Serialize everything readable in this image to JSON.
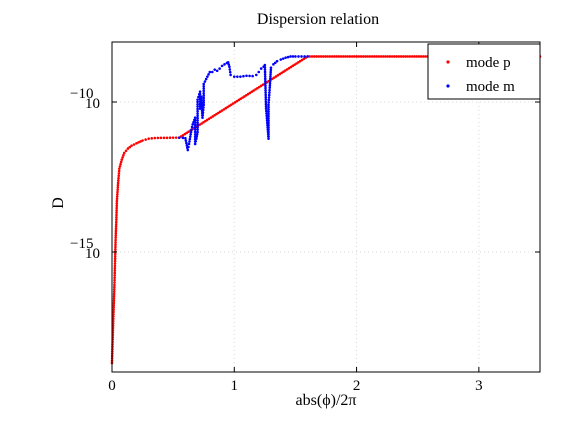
{
  "chart_data": {
    "type": "scatter",
    "title": "Dispersion relation",
    "xlabel": "abs(ϕ)/2π",
    "ylabel": "D",
    "xlim": [
      0,
      3.5
    ],
    "ylim": [
      1e-19,
      1e-08
    ],
    "yscale": "log",
    "grid": true,
    "legend_position": "top-right",
    "x_ticks": [
      0,
      1,
      2,
      3
    ],
    "x_tick_labels": [
      "0",
      "1",
      "2",
      "3"
    ],
    "y_ticks": [
      1e-15,
      1e-10
    ],
    "y_tick_labels": [
      {
        "base": "10",
        "exp": "−15"
      },
      {
        "base": "10",
        "exp": "−10"
      }
    ],
    "series": [
      {
        "name": "mode p",
        "color": "#ff0000",
        "marker": "dot",
        "points": [
          [
            0.0,
            2e-19
          ],
          [
            0.005,
            1e-18
          ],
          [
            0.01,
            5e-18
          ],
          [
            0.015,
            2e-17
          ],
          [
            0.02,
            8e-17
          ],
          [
            0.025,
            5e-16
          ],
          [
            0.03,
            3e-15
          ],
          [
            0.035,
            1e-14
          ],
          [
            0.04,
            5e-14
          ],
          [
            0.05,
            2e-13
          ],
          [
            0.06,
            6e-13
          ],
          [
            0.08,
            1.2e-12
          ],
          [
            0.1,
            2e-12
          ],
          [
            0.13,
            2.8e-12
          ],
          [
            0.16,
            3.5e-12
          ],
          [
            0.2,
            4.2e-12
          ],
          [
            0.25,
            5.2e-12
          ],
          [
            0.3,
            6e-12
          ],
          [
            0.35,
            6.3e-12
          ],
          [
            0.4,
            6.4e-12
          ],
          [
            0.45,
            6.4e-12
          ],
          [
            0.5,
            6.5e-12
          ],
          [
            0.55,
            6.5e-12
          ],
          [
            1.6,
            3.3e-09
          ],
          [
            1.8,
            3.3e-09
          ],
          [
            2.0,
            3.3e-09
          ],
          [
            2.2,
            3.3e-09
          ],
          [
            2.4,
            3.3e-09
          ],
          [
            2.6,
            3.3e-09
          ],
          [
            2.8,
            3.3e-09
          ],
          [
            3.0,
            3.3e-09
          ],
          [
            3.2,
            3.3e-09
          ],
          [
            3.4,
            3.3e-09
          ],
          [
            3.5,
            3.3e-09
          ]
        ]
      },
      {
        "name": "mode m",
        "color": "#0000ff",
        "marker": "dot",
        "points": [
          [
            0.55,
            6.5e-12
          ],
          [
            0.58,
            6.4e-12
          ],
          [
            0.6,
            6.2e-12
          ],
          [
            0.62,
            2.5e-12
          ],
          [
            0.63,
            4e-12
          ],
          [
            0.64,
            7e-12
          ],
          [
            0.65,
            1.2e-11
          ],
          [
            0.66,
            1.8e-11
          ],
          [
            0.68,
            3e-11
          ],
          [
            0.68,
            4e-12
          ],
          [
            0.69,
            6e-12
          ],
          [
            0.7,
            1e-11
          ],
          [
            0.7,
            1.2e-10
          ],
          [
            0.72,
            2.2e-10
          ],
          [
            0.72,
            6e-11
          ],
          [
            0.73,
            1.5e-10
          ],
          [
            0.74,
            3e-11
          ],
          [
            0.75,
            8e-11
          ],
          [
            0.75,
            4e-10
          ],
          [
            0.78,
            7e-10
          ],
          [
            0.8,
            1e-09
          ],
          [
            0.82,
            1e-09
          ],
          [
            0.84,
            1.2e-09
          ],
          [
            0.86,
            1.1e-09
          ],
          [
            0.88,
            1.3e-09
          ],
          [
            0.9,
            1.6e-09
          ],
          [
            0.92,
            1.8e-09
          ],
          [
            0.94,
            2e-09
          ],
          [
            0.95,
            2.1e-09
          ],
          [
            0.96,
            1.5e-09
          ],
          [
            0.97,
            8e-10
          ],
          [
            1.0,
            7e-10
          ],
          [
            1.05,
            7e-10
          ],
          [
            1.1,
            7.5e-10
          ],
          [
            1.15,
            7.3e-10
          ],
          [
            1.18,
            8e-10
          ],
          [
            1.2,
            1e-09
          ],
          [
            1.22,
            1.3e-09
          ],
          [
            1.24,
            1.5e-09
          ],
          [
            1.25,
            1.7e-09
          ],
          [
            1.26,
            6e-11
          ],
          [
            1.27,
            2e-11
          ],
          [
            1.28,
            6e-12
          ],
          [
            1.28,
            8e-11
          ],
          [
            1.29,
            3e-10
          ],
          [
            1.3,
            1.4e-09
          ],
          [
            1.32,
            1.8e-09
          ],
          [
            1.35,
            2.3e-09
          ],
          [
            1.38,
            2.6e-09
          ],
          [
            1.42,
            3e-09
          ],
          [
            1.46,
            3.3e-09
          ],
          [
            1.5,
            3.3e-09
          ],
          [
            1.55,
            3.3e-09
          ],
          [
            1.6,
            3.3e-09
          ]
        ]
      }
    ]
  }
}
